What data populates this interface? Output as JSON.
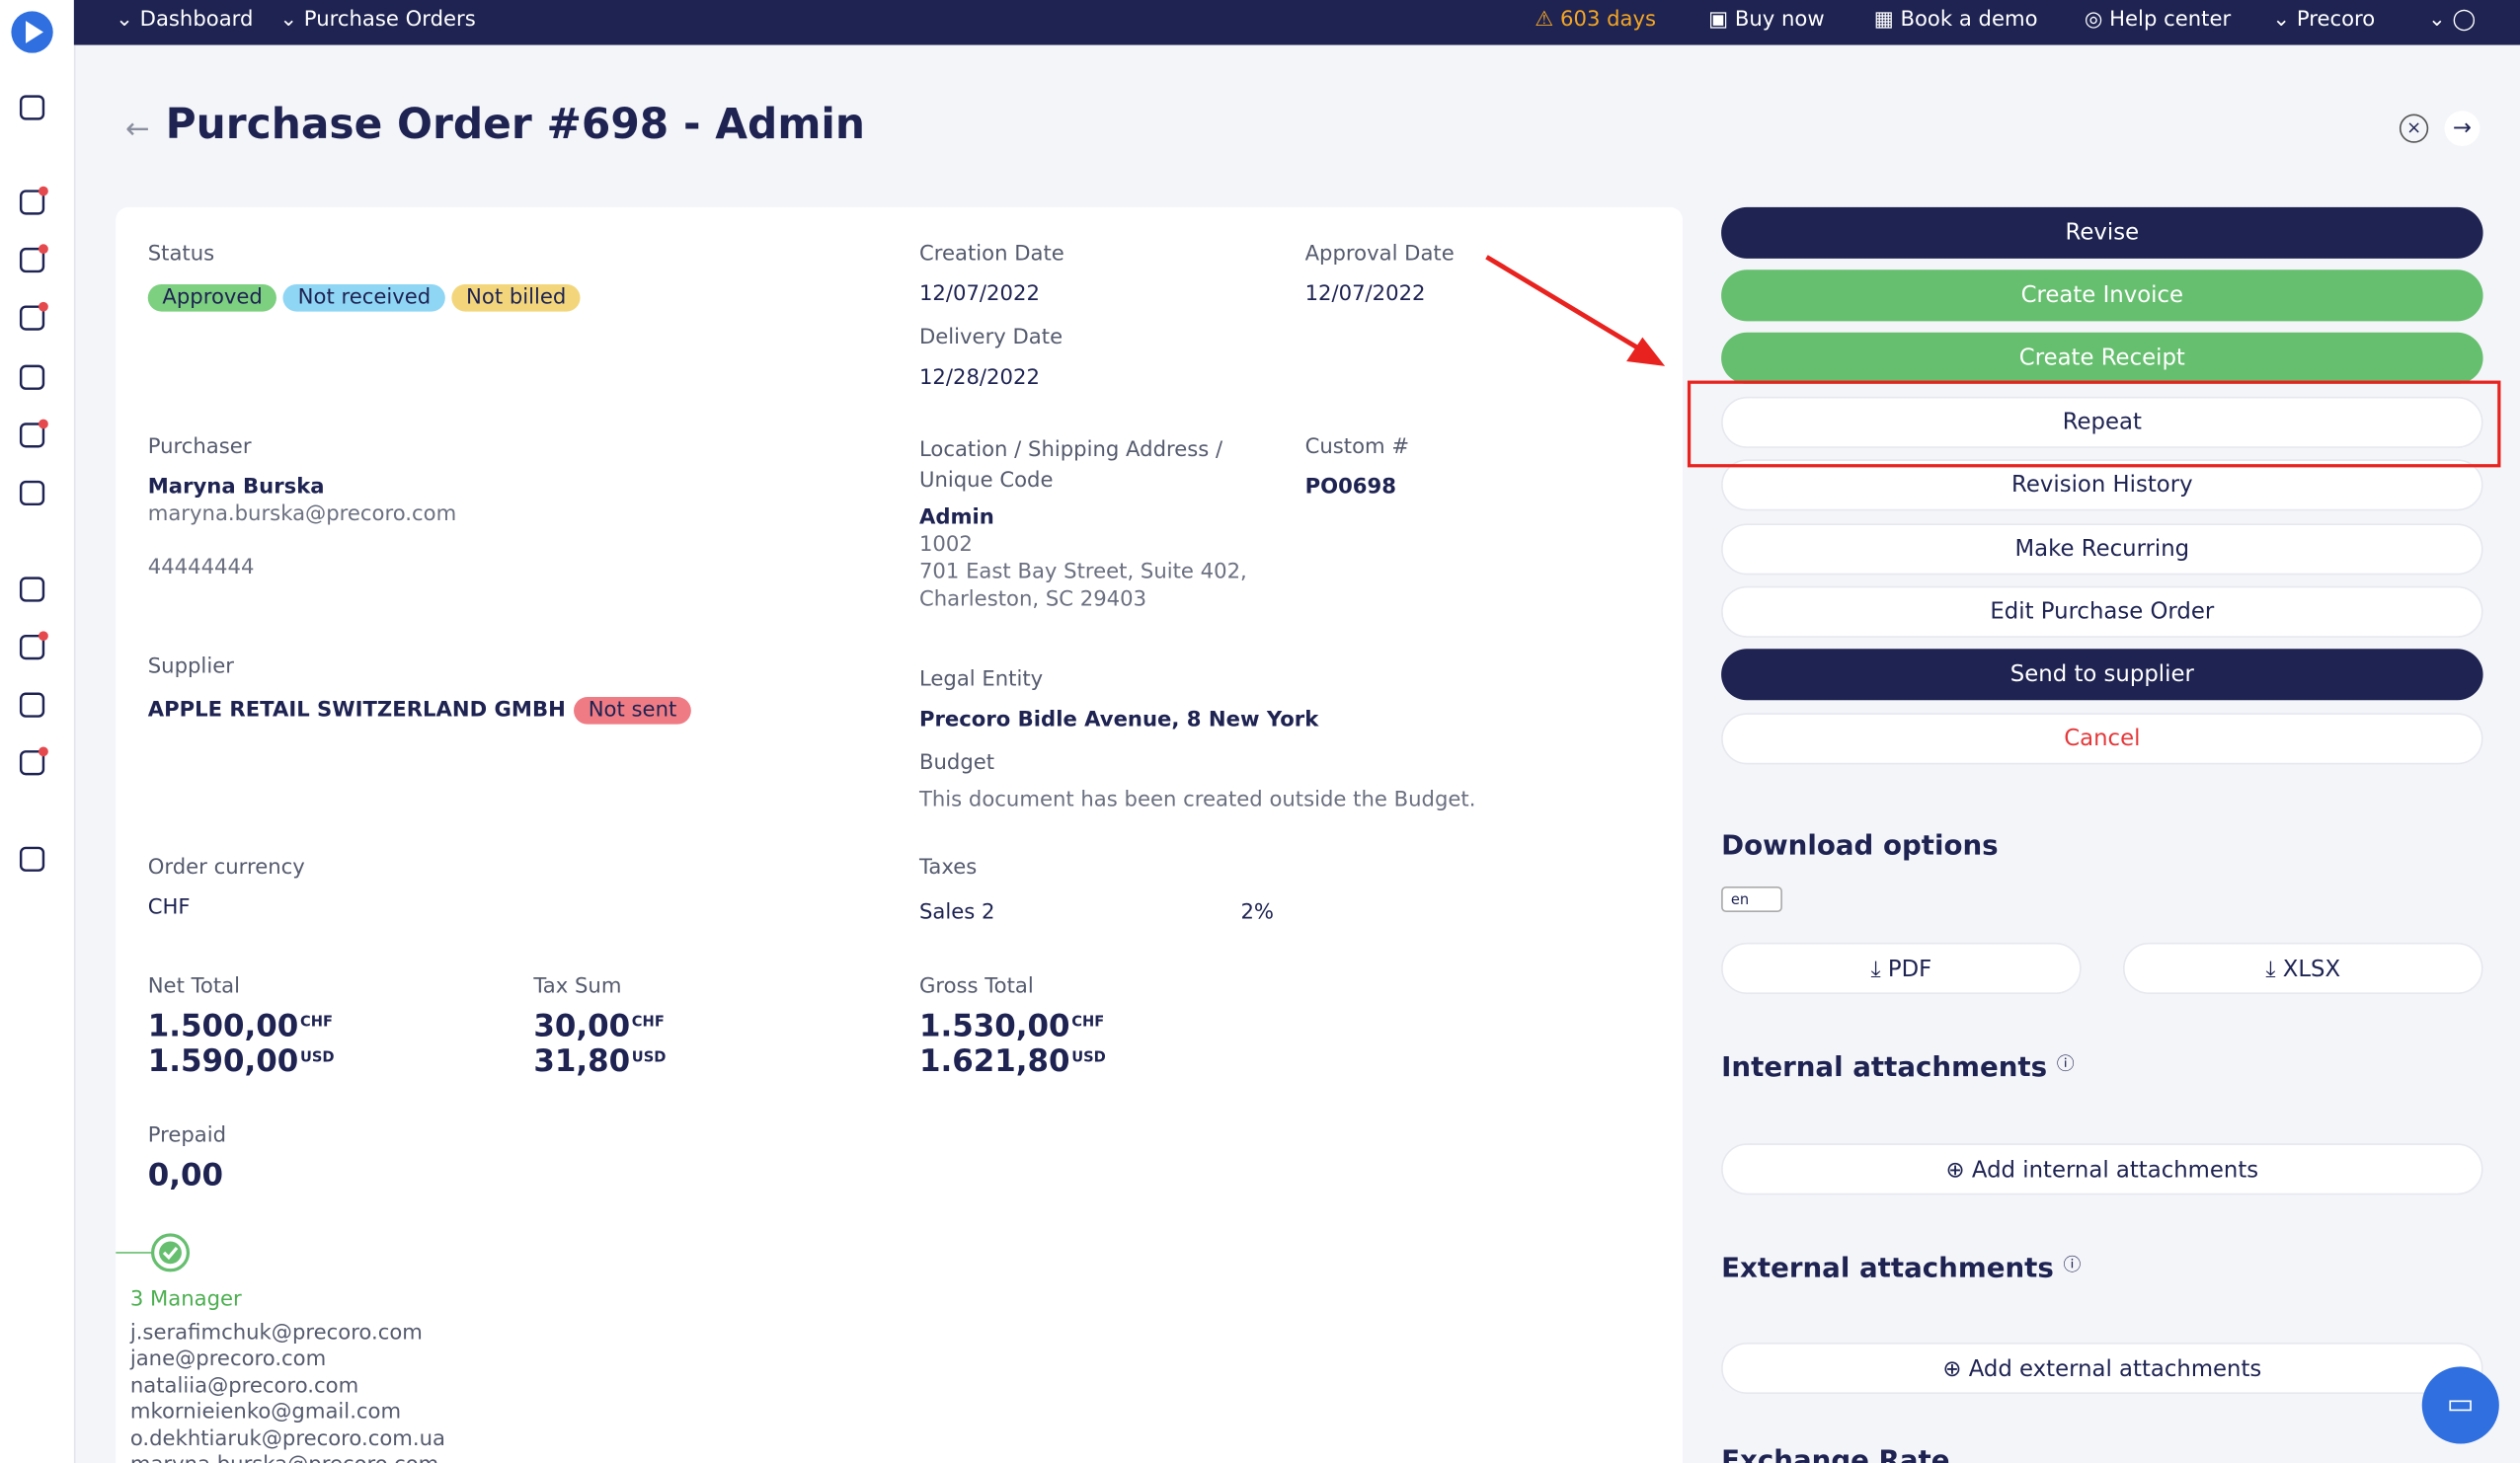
{
  "nav": {
    "breadcrumbs": [
      "Dashboard",
      "Purchase Orders"
    ],
    "trial": "603 days",
    "buy": "Buy now",
    "demo": "Book a demo",
    "help": "Help center",
    "company": "Precoro"
  },
  "header": {
    "title": "Purchase Order #698 - Admin"
  },
  "details": {
    "status_label": "Status",
    "statuses": [
      "Approved",
      "Not received",
      "Not billed"
    ],
    "creation_label": "Creation Date",
    "creation": "12/07/2022",
    "approval_label": "Approval Date",
    "approval": "12/07/2022",
    "delivery_label": "Delivery Date",
    "delivery": "12/28/2022",
    "purchaser_label": "Purchaser",
    "purchaser_name": "Maryna Burska",
    "purchaser_email": "maryna.burska@precoro.com",
    "purchaser_phone": "44444444",
    "location_label": "Location / Shipping Address / Unique Code",
    "location_name": "Admin",
    "location_code": "1002",
    "address1": "701 East Bay Street, Suite 402,",
    "address2": "Charleston, SC 29403",
    "custom_label": "Custom #",
    "custom": "PO0698",
    "supplier_label": "Supplier",
    "supplier": "APPLE RETAIL SWITZERLAND GMBH",
    "supplier_status": "Not sent",
    "legal_label": "Legal Entity",
    "legal": "Precoro Bidle Avenue, 8 New York",
    "budget_label": "Budget",
    "budget": "This document has been created outside the Budget.",
    "currency_label": "Order currency",
    "currency": "CHF",
    "taxes_label": "Taxes",
    "tax_name": "Sales 2",
    "tax_rate": "2%",
    "net_label": "Net Total",
    "net_chf": "1.500,00",
    "net_usd": "1.590,00",
    "taxsum_label": "Tax Sum",
    "tax_chf": "30,00",
    "tax_usd": "31,80",
    "gross_label": "Gross Total",
    "gross_chf": "1.530,00",
    "gross_usd": "1.621,80",
    "chf": "CHF",
    "usd": "USD",
    "prepaid_label": "Prepaid",
    "prepaid": "0,00"
  },
  "approval": {
    "step": "3 Manager",
    "emails": [
      "j.serafimchuk@precoro.com",
      "jane@precoro.com",
      "nataliia@precoro.com",
      "mkornieienko@gmail.com",
      "o.dekhtiaruk@precoro.com.ua",
      "maryna.burska@precoro.com"
    ]
  },
  "actions": [
    "Revise",
    "Create Invoice",
    "Create Receipt",
    "Repeat",
    "Revision History",
    "Make Recurring",
    "Edit Purchase Order",
    "Send to supplier",
    "Cancel"
  ],
  "download": {
    "title": "Download options",
    "lang": "en",
    "pdf": "PDF",
    "xlsx": "XLSX"
  },
  "internal": {
    "title": "Internal attachments",
    "button": "Add internal attachments"
  },
  "external": {
    "title": "External attachments",
    "button": "Add external attachments"
  },
  "exchange": {
    "title": "Exchange Rate"
  }
}
